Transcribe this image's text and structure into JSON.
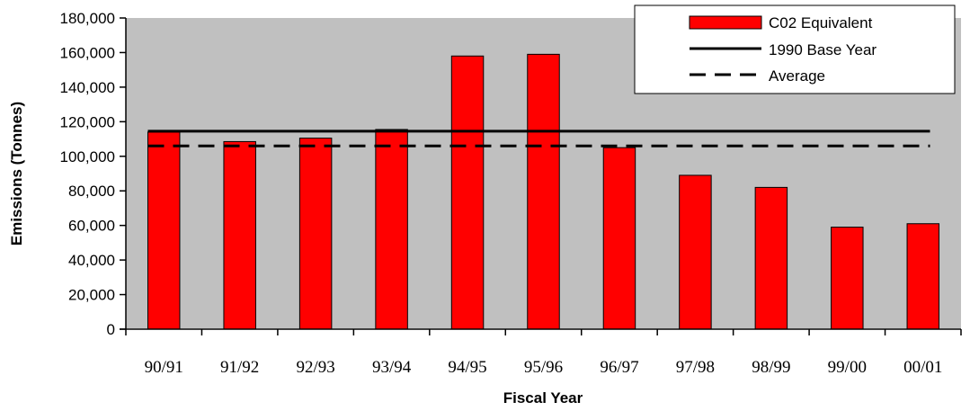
{
  "chart_data": {
    "type": "bar",
    "title": "",
    "xlabel": "Fiscal Year",
    "ylabel": "Emissions (Tonnes)",
    "categories": [
      "90/91",
      "91/92",
      "92/93",
      "93/94",
      "94/95",
      "95/96",
      "96/97",
      "97/98",
      "98/99",
      "99/00",
      "00/01"
    ],
    "series": [
      {
        "name": "C02 Equivalent",
        "type": "bar",
        "color": "#ff0000",
        "values": [
          114000,
          108500,
          110500,
          115500,
          158000,
          159000,
          105000,
          89000,
          82000,
          59000,
          61000
        ]
      },
      {
        "name": "1990 Base Year",
        "type": "line",
        "style": "solid",
        "color": "#000000",
        "value": 114500
      },
      {
        "name": "Average",
        "type": "line",
        "style": "dashed",
        "color": "#000000",
        "value": 106000
      }
    ],
    "ylim": [
      0,
      180000
    ],
    "yticks": [
      0,
      20000,
      40000,
      60000,
      80000,
      100000,
      120000,
      140000,
      160000,
      180000
    ],
    "ytick_labels": [
      "0",
      "20,000",
      "40,000",
      "60,000",
      "80,000",
      "100,000",
      "120,000",
      "140,000",
      "160,000",
      "180,000"
    ],
    "grid": false,
    "plot_background": "#c0c0c0",
    "legend_position": "top-right"
  }
}
